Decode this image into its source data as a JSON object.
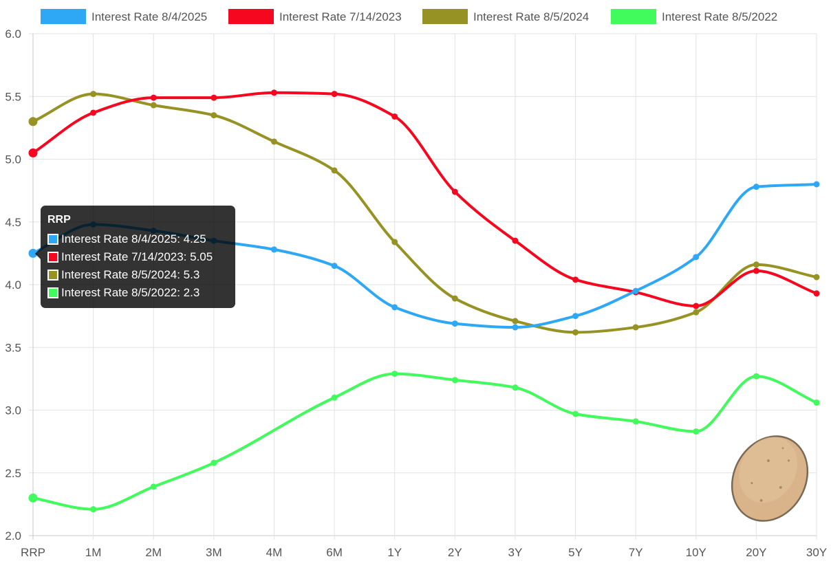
{
  "chart_data": {
    "type": "line",
    "categories": [
      "RRP",
      "1M",
      "2M",
      "3M",
      "4M",
      "6M",
      "1Y",
      "2Y",
      "3Y",
      "5Y",
      "7Y",
      "10Y",
      "20Y",
      "30Y"
    ],
    "ylim": [
      2.0,
      6.0
    ],
    "y_ticks": [
      "2.0",
      "2.5",
      "3.0",
      "3.5",
      "4.0",
      "4.5",
      "5.0",
      "5.5",
      "6.0"
    ],
    "grid": true,
    "legend_position": "top",
    "series": [
      {
        "name": "Interest Rate 8/4/2025",
        "color": "#2ea8f5",
        "values": [
          4.25,
          4.48,
          4.43,
          4.35,
          4.28,
          4.15,
          3.82,
          3.69,
          3.66,
          3.75,
          3.95,
          4.22,
          4.78,
          4.8
        ]
      },
      {
        "name": "Interest Rate 7/14/2023",
        "color": "#f5071f",
        "values": [
          5.05,
          5.37,
          5.49,
          5.49,
          5.53,
          5.52,
          5.34,
          4.74,
          4.35,
          4.04,
          3.94,
          3.83,
          4.11,
          3.93
        ]
      },
      {
        "name": "Interest Rate 8/5/2024",
        "color": "#969223",
        "values": [
          5.3,
          5.52,
          5.43,
          5.35,
          5.14,
          4.91,
          4.34,
          3.89,
          3.71,
          3.62,
          3.66,
          3.78,
          4.16,
          4.06
        ]
      },
      {
        "name": "Interest Rate 8/5/2022",
        "color": "#41fb5c",
        "values": [
          2.3,
          2.21,
          2.39,
          2.58,
          null,
          3.1,
          3.29,
          3.24,
          3.18,
          2.97,
          2.91,
          2.83,
          3.27,
          3.06
        ]
      }
    ],
    "tooltip": {
      "title": "RRP",
      "rows": [
        {
          "color": "#2ea8f5",
          "text": "Interest Rate 8/4/2025: 4.25"
        },
        {
          "color": "#f5071f",
          "text": "Interest Rate 7/14/2023: 5.05"
        },
        {
          "color": "#969223",
          "text": "Interest Rate 8/5/2024: 5.3"
        },
        {
          "color": "#41fb5c",
          "text": "Interest Rate 8/5/2022: 2.3"
        }
      ]
    }
  },
  "decoration": {
    "icon": "potato-icon"
  }
}
